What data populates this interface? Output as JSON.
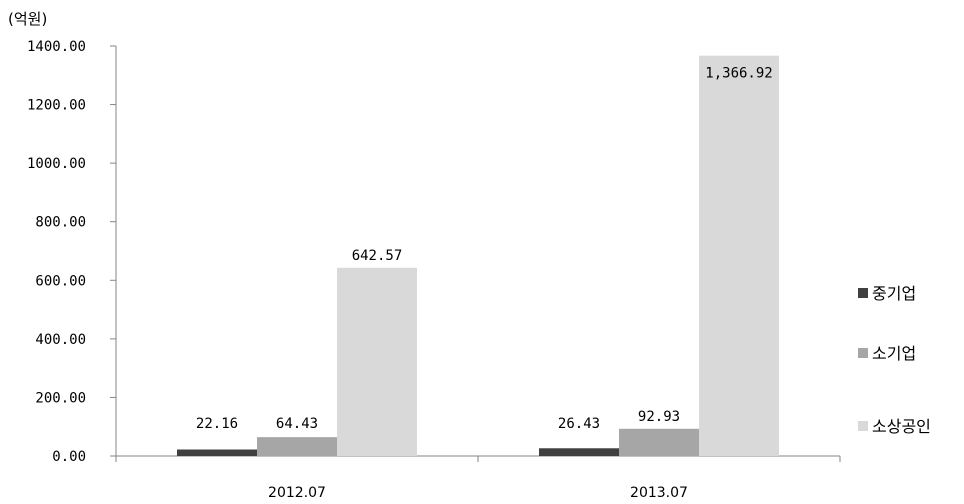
{
  "chart_data": {
    "type": "bar",
    "unit_label": "(억원)",
    "categories": [
      "2012.07",
      "2013.07"
    ],
    "series": [
      {
        "name": "중기업",
        "values": [
          22.16,
          26.43
        ],
        "labels": [
          "22.16",
          "26.43"
        ],
        "color": "#404040"
      },
      {
        "name": "소기업",
        "values": [
          64.43,
          92.93
        ],
        "labels": [
          "64.43",
          "92.93"
        ],
        "color": "#a6a6a6"
      },
      {
        "name": "소상공인",
        "values": [
          642.57,
          1366.92
        ],
        "labels": [
          "642.57",
          "1,366.92"
        ],
        "color": "#d9d9d9"
      }
    ],
    "ylim": [
      0,
      1400
    ],
    "yticks": [
      "0.00",
      "200.00",
      "400.00",
      "600.00",
      "800.00",
      "1000.00",
      "1200.00",
      "1400.00"
    ],
    "grid": false,
    "legend": "right"
  }
}
